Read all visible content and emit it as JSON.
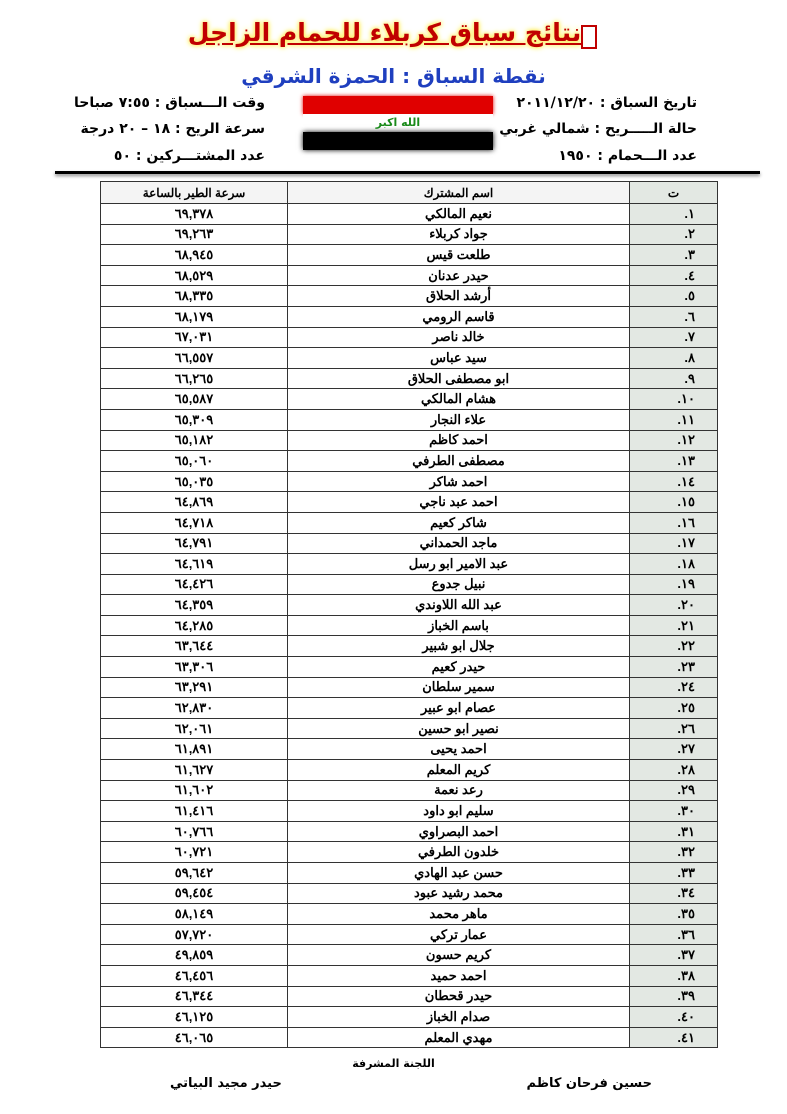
{
  "header": {
    "title": "نتائج سباق كربلاء للحمام الزاجل",
    "subtitle": "نقطة السباق : الحمزة الشرقي",
    "flag_text": "الله اكبر",
    "colors": {
      "title": "#c00000",
      "subtitle": "#1f3fbf",
      "flag_red": "#e00000",
      "flag_green": "#1a8a1a"
    },
    "right_info": [
      "تاريخ السباق : ٢٠١١/١٢/٢٠",
      "حالة الـــــريح : شمالي غربي",
      "عدد الـــحمام : ١٩٥٠"
    ],
    "left_info": [
      "وقت الـــسباق : ٧:٥٥ صباحا",
      "سرعة الريح : ١٨ – ٢٠ درجة",
      "عدد المشتـــركين : ٥٠"
    ]
  },
  "table": {
    "columns": [
      "ت",
      "اسم المشترك",
      "سرعة الطير بالساعة"
    ],
    "rows": [
      [
        "١.",
        "نعيم المالكي",
        "٦٩,٣٧٨"
      ],
      [
        "٢.",
        "جواد كربلاء",
        "٦٩,٢٦٣"
      ],
      [
        "٣.",
        "طلعت قيس",
        "٦٨,٩٤٥"
      ],
      [
        "٤.",
        "حيدر عدنان",
        "٦٨,٥٢٩"
      ],
      [
        "٥.",
        "أرشد الحلاق",
        "٦٨,٣٣٥"
      ],
      [
        "٦.",
        "قاسم الرومي",
        "٦٨,١٧٩"
      ],
      [
        "٧.",
        "خالد ناصر",
        "٦٧,٠٣١"
      ],
      [
        "٨.",
        "سيد عباس",
        "٦٦,٥٥٧"
      ],
      [
        "٩.",
        "ابو مصطفى الحلاق",
        "٦٦,٢٦٥"
      ],
      [
        "١٠.",
        "هشام المالكي",
        "٦٥,٥٨٧"
      ],
      [
        "١١.",
        "علاء النجار",
        "٦٥,٣٠٩"
      ],
      [
        "١٢.",
        "احمد كاظم",
        "٦٥,١٨٢"
      ],
      [
        "١٣.",
        "مصطفى الطرفي",
        "٦٥,٠٦٠"
      ],
      [
        "١٤.",
        "احمد شاكر",
        "٦٥,٠٣٥"
      ],
      [
        "١٥.",
        "احمد عبد ناجي",
        "٦٤,٨٦٩"
      ],
      [
        "١٦.",
        "شاكر كعيم",
        "٦٤,٧١٨"
      ],
      [
        "١٧.",
        "ماجد الحمداني",
        "٦٤,٧٩١"
      ],
      [
        "١٨.",
        "عبد الامير ابو رسل",
        "٦٤,٦١٩"
      ],
      [
        "١٩.",
        "نبيل جدوع",
        "٦٤,٤٢٦"
      ],
      [
        "٢٠.",
        "عبد الله اللاوندي",
        "٦٤,٣٥٩"
      ],
      [
        "٢١.",
        "باسم الخباز",
        "٦٤,٢٨٥"
      ],
      [
        "٢٢.",
        "جلال ابو شبير",
        "٦٣,٦٤٤"
      ],
      [
        "٢٣.",
        "حيدر كعيم",
        "٦٣,٣٠٦"
      ],
      [
        "٢٤.",
        "سمير سلطان",
        "٦٣,٢٩١"
      ],
      [
        "٢٥.",
        "عصام ابو عبير",
        "٦٢,٨٣٠"
      ],
      [
        "٢٦.",
        "نصير ابو حسين",
        "٦٢,٠٦١"
      ],
      [
        "٢٧.",
        "احمد يحيى",
        "٦١,٨٩١"
      ],
      [
        "٢٨.",
        "كريم المعلم",
        "٦١,٦٢٧"
      ],
      [
        "٢٩.",
        "رعد نعمة",
        "٦١,٦٠٢"
      ],
      [
        "٣٠.",
        "سليم ابو داود",
        "٦١,٤١٦"
      ],
      [
        "٣١.",
        "احمد البصراوي",
        "٦٠,٧٦٦"
      ],
      [
        "٣٢.",
        "خلدون الطرفي",
        "٦٠,٧٢١"
      ],
      [
        "٣٣.",
        "حسن عبد الهادي",
        "٥٩,٦٤٢"
      ],
      [
        "٣٤.",
        "محمد رشيد عبود",
        "٥٩,٤٥٤"
      ],
      [
        "٣٥.",
        "ماهر محمد",
        "٥٨,١٤٩"
      ],
      [
        "٣٦.",
        "عمار تركي",
        "٥٧,٧٢٠"
      ],
      [
        "٣٧.",
        "كريم حسون",
        "٤٩,٨٥٩"
      ],
      [
        "٣٨.",
        "احمد حميد",
        "٤٦,٤٥٦"
      ],
      [
        "٣٩.",
        "حيدر قحطان",
        "٤٦,٣٤٤"
      ],
      [
        "٤٠.",
        "صدام الخباز",
        "٤٦,١٢٥"
      ],
      [
        "٤١.",
        "مهدي المعلم",
        "٤٦,٠٦٥"
      ]
    ]
  },
  "footer": {
    "committee": "اللجنة المشرفة",
    "signatures": [
      "حسين فرحان كاظم",
      "حيدر مجيد البياتي"
    ]
  }
}
